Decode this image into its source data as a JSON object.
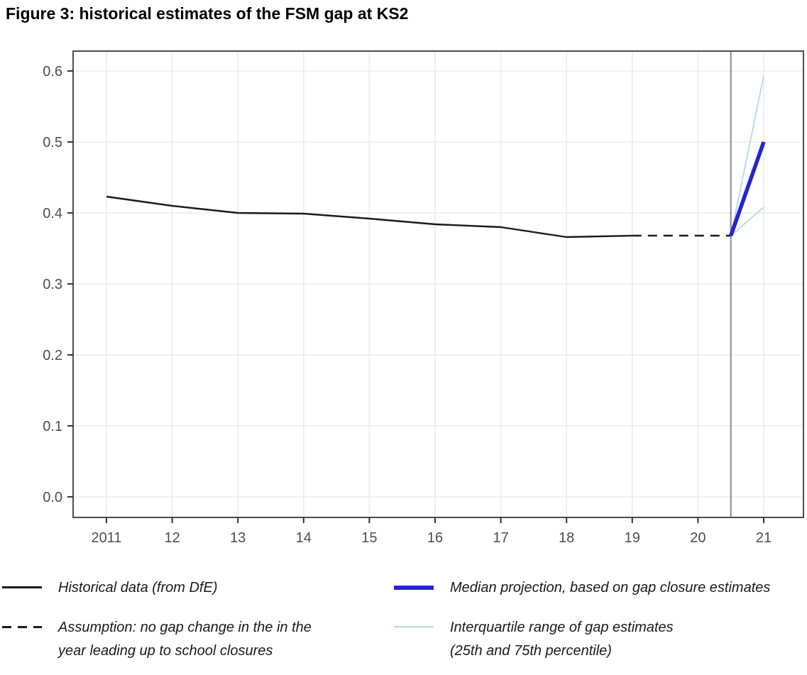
{
  "page": {
    "title": "Figure 3: historical estimates of the FSM gap at KS2"
  },
  "chart_data": {
    "type": "line",
    "title": "Figure 3: historical estimates of the FSM gap at KS2",
    "xlabel": "",
    "ylabel": "",
    "grid": true,
    "legend_position": "bottom",
    "xlim": [
      2010.49,
      2021.64
    ],
    "ylim": [
      -0.029,
      0.628
    ],
    "x_ticks": [
      {
        "value": 2011,
        "label": "2011"
      },
      {
        "value": 2012,
        "label": "12"
      },
      {
        "value": 2013,
        "label": "13"
      },
      {
        "value": 2014,
        "label": "14"
      },
      {
        "value": 2015,
        "label": "15"
      },
      {
        "value": 2016,
        "label": "16"
      },
      {
        "value": 2017,
        "label": "17"
      },
      {
        "value": 2018,
        "label": "18"
      },
      {
        "value": 2019,
        "label": "19"
      },
      {
        "value": 2020,
        "label": "20"
      },
      {
        "value": 2021,
        "label": "21"
      }
    ],
    "y_ticks": [
      {
        "value": 0.0,
        "label": "0.0"
      },
      {
        "value": 0.1,
        "label": "0.1"
      },
      {
        "value": 0.2,
        "label": "0.2"
      },
      {
        "value": 0.3,
        "label": "0.3"
      },
      {
        "value": 0.4,
        "label": "0.4"
      },
      {
        "value": 0.5,
        "label": "0.5"
      },
      {
        "value": 0.6,
        "label": "0.6"
      }
    ],
    "vline": {
      "x": 2020.5,
      "color": "#8a8a8a",
      "width": 2
    },
    "colors": {
      "historical": "#1a1a1a",
      "median_projection": "#2525cf",
      "interquartile": "#b4d8e8",
      "gridline": "#ebebeb",
      "panel_border": "#4d4d4d",
      "tick_label": "#4d4d4d",
      "tick_mark": "#333333"
    },
    "series": [
      {
        "id": "historical-line",
        "name": "Historical data (from DfE)",
        "style": "solid",
        "color": "#1a1a1a",
        "width": 2.4,
        "x": [
          2011,
          2012,
          2013,
          2014,
          2015,
          2016,
          2017,
          2018,
          2019
        ],
        "y": [
          0.423,
          0.41,
          0.4,
          0.399,
          0.392,
          0.384,
          0.38,
          0.366,
          0.368
        ]
      },
      {
        "id": "assumption-dashed-line",
        "name": "Assumption: no gap change in the in the year leading up to school closures",
        "style": "dashed",
        "color": "#1a1a1a",
        "width": 2.4,
        "x": [
          2019,
          2020.5
        ],
        "y": [
          0.368,
          0.368
        ]
      },
      {
        "id": "iqr-upper-line",
        "name": "Interquartile range of gap estimates (75th percentile)",
        "style": "solid",
        "color": "#b4d8e8",
        "width": 1.8,
        "x": [
          2020.5,
          2021
        ],
        "y": [
          0.368,
          0.593
        ]
      },
      {
        "id": "iqr-lower-line",
        "name": "Interquartile range of gap estimates (25th percentile)",
        "style": "solid",
        "color": "#b4d8e8",
        "width": 1.8,
        "x": [
          2020.5,
          2021
        ],
        "y": [
          0.368,
          0.408
        ]
      },
      {
        "id": "median-projection-line",
        "name": "Median projection, based on gap closure estimates",
        "style": "solid",
        "color": "#2525cf",
        "width": 5.5,
        "x": [
          2020.5,
          2021
        ],
        "y": [
          0.368,
          0.5
        ]
      }
    ]
  },
  "legend": {
    "items": [
      {
        "id": "historical",
        "swatch": "solid",
        "color": "#1a1a1a",
        "line1": "Historical data (from DfE)",
        "line2": ""
      },
      {
        "id": "assumption",
        "swatch": "dashed",
        "color": "#1a1a1a",
        "line1": "Assumption: no gap change in the in the",
        "line2": "year leading up to school closures"
      },
      {
        "id": "median-projection",
        "swatch": "thick",
        "color": "#2525cf",
        "line1": "Median projection, based on gap closure estimates",
        "line2": ""
      },
      {
        "id": "interquartile-range",
        "swatch": "thin",
        "color": "#b4d8e8",
        "line1": "Interquartile range of gap estimates",
        "line2": "(25th and 75th percentile)"
      }
    ]
  }
}
